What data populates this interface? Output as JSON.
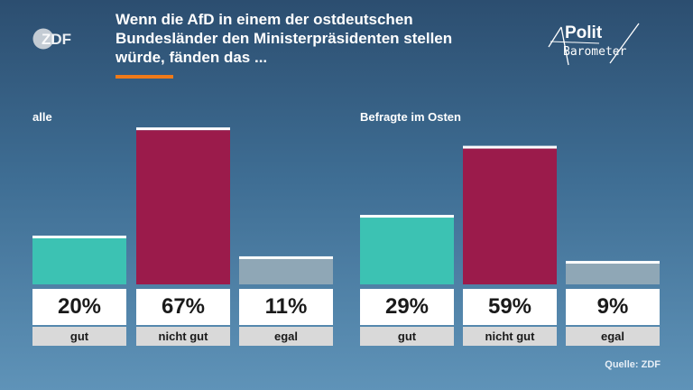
{
  "header": {
    "logo_text": "ZDF",
    "title_lines": [
      "Wenn die AfD in einem der ostdeutschen",
      "Bundesländer den Ministerpräsidenten stellen",
      "würde, fänden das ..."
    ],
    "brand_line1": "Polit",
    "brand_line2": "Barometer"
  },
  "footer": {
    "source": "Quelle: ZDF"
  },
  "colors": {
    "gut": "#3cc2b3",
    "nicht_gut": "#9b1b4b",
    "egal": "#8fa7b6",
    "accent": "#f07a18"
  },
  "chart_data": [
    {
      "type": "bar",
      "label": "alle",
      "categories": [
        "gut",
        "nicht gut",
        "egal"
      ],
      "values": [
        20,
        67,
        11
      ],
      "value_labels": [
        "20%",
        "67%",
        "11%"
      ],
      "ylim": [
        0,
        70
      ]
    },
    {
      "type": "bar",
      "label": "Befragte im Osten",
      "categories": [
        "gut",
        "nicht gut",
        "egal"
      ],
      "values": [
        29,
        59,
        9
      ],
      "value_labels": [
        "29%",
        "59%",
        "9%"
      ],
      "ylim": [
        0,
        70
      ]
    }
  ]
}
